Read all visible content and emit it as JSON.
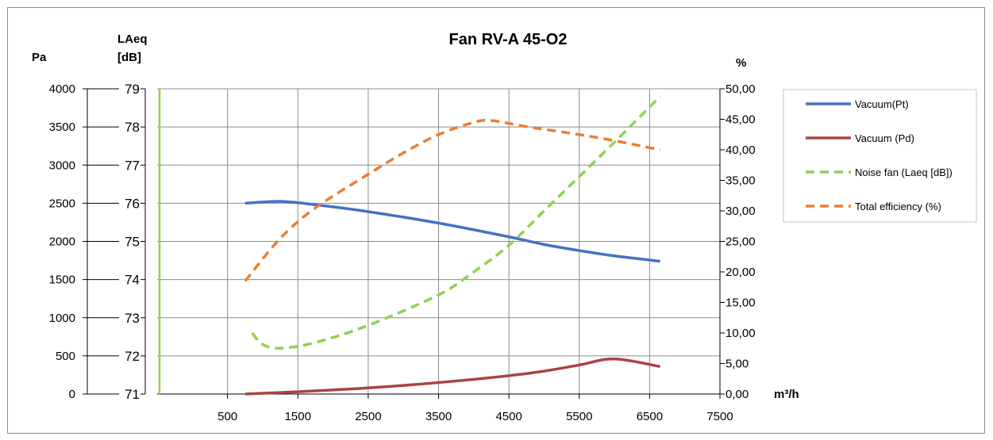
{
  "chart_data": {
    "type": "line",
    "title": "Fan RV-A 45-O2",
    "xlabel": "m³/h",
    "y_axes": [
      {
        "id": "pa",
        "label": "Pa",
        "ticks": [
          "0",
          "500",
          "1000",
          "1500",
          "2000",
          "2500",
          "3000",
          "3500",
          "4000"
        ],
        "range": [
          0,
          4000
        ]
      },
      {
        "id": "laeq",
        "label_line1": "LAeq",
        "label_line2": "[dB]",
        "ticks": [
          "71",
          "72",
          "73",
          "74",
          "75",
          "76",
          "77",
          "78",
          "79"
        ],
        "range": [
          71,
          79
        ]
      },
      {
        "id": "pct",
        "label": "%",
        "ticks": [
          "0,00",
          "5,00",
          "10,00",
          "15,00",
          "20,00",
          "25,00",
          "30,00",
          "35,00",
          "40,00",
          "45,00",
          "50,00"
        ],
        "range": [
          0,
          50
        ]
      }
    ],
    "x_ticks": [
      "500",
      "1500",
      "2500",
      "3500",
      "4500",
      "5500",
      "6500",
      "7500"
    ],
    "xlim": [
      -500,
      7500
    ],
    "grid": true,
    "legend_position": "right",
    "series": [
      {
        "name": "Vacuum(Pt)",
        "axis": "pa",
        "color": "#4472C4",
        "dash": false,
        "x": [
          750,
          1250,
          1750,
          2500,
          3500,
          4500,
          5000,
          5500,
          6000,
          6650
        ],
        "y": [
          2500,
          2525,
          2480,
          2390,
          2240,
          2060,
          1960,
          1880,
          1810,
          1740
        ]
      },
      {
        "name": "Vacuum (Pd)",
        "axis": "pa",
        "color": "#A94442",
        "dash": false,
        "x": [
          750,
          1500,
          2500,
          3500,
          4500,
          5000,
          5500,
          6000,
          6650
        ],
        "y": [
          0,
          30,
          80,
          150,
          240,
          300,
          380,
          460,
          360
        ]
      },
      {
        "name": "Noise fan (Laeq [dB])",
        "axis": "laeq",
        "color": "#92D050",
        "dash": true,
        "x": [
          850,
          1000,
          1250,
          1750,
          2500,
          3500,
          4000,
          4500,
          5000,
          5500,
          6000,
          6650
        ],
        "y": [
          72.6,
          72.3,
          72.2,
          72.35,
          72.8,
          73.6,
          74.2,
          74.9,
          75.8,
          76.7,
          77.6,
          78.8
        ]
      },
      {
        "name": "Total efficiency (%)",
        "axis": "pct",
        "color": "#ED7D31",
        "dash": true,
        "x": [
          750,
          1250,
          1750,
          2500,
          3000,
          3500,
          4000,
          4250,
          4750,
          5500,
          6000,
          6650
        ],
        "y": [
          18.5,
          25.5,
          30.5,
          36.0,
          39.5,
          42.5,
          44.5,
          44.8,
          43.8,
          42.5,
          41.5,
          40.0
        ]
      }
    ]
  }
}
